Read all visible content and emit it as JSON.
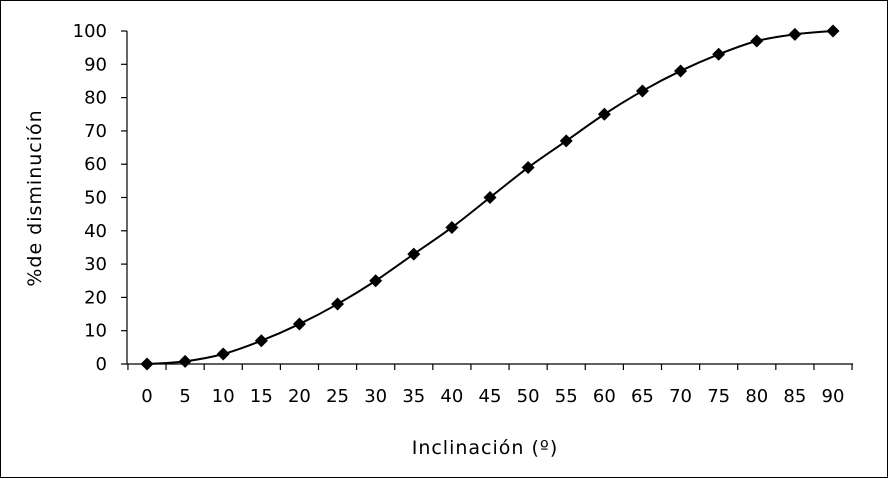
{
  "chart_data": {
    "type": "line",
    "title": "",
    "xlabel": "Inclinación (º)",
    "ylabel": "%de disminución",
    "xlim": [
      0,
      90
    ],
    "ylim": [
      0,
      100
    ],
    "x_ticks": [
      "0",
      "5",
      "10",
      "15",
      "20",
      "25",
      "30",
      "35",
      "40",
      "45",
      "50",
      "55",
      "60",
      "65",
      "70",
      "75",
      "80",
      "85",
      "90"
    ],
    "y_ticks": [
      "0",
      "10",
      "20",
      "30",
      "40",
      "50",
      "60",
      "70",
      "80",
      "90",
      "100"
    ],
    "grid": false,
    "legend": "none",
    "marker": "diamond",
    "line_color": "#000000",
    "series": [
      {
        "x": [
          0,
          5,
          10,
          15,
          20,
          25,
          30,
          35,
          40,
          45,
          50,
          55,
          60,
          65,
          70,
          75,
          80,
          85,
          90
        ],
        "values": [
          0,
          0.8,
          3,
          7,
          12,
          18,
          25,
          33,
          41,
          50,
          59,
          67,
          75,
          82,
          88,
          93,
          97,
          99,
          100
        ]
      }
    ]
  }
}
